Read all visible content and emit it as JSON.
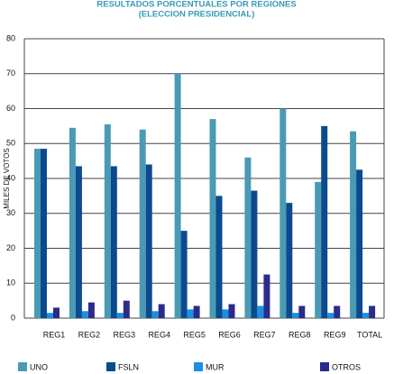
{
  "chart_data": {
    "type": "bar",
    "title": "RESULTADOS PORCENTUALES POR REGIONES",
    "subtitle": "(ELECCION PRESIDENCIAL)",
    "y_label": "MILES DE VOTOS",
    "categories": [
      "REG1",
      "REG2",
      "REG3",
      "REG4",
      "REG5",
      "REG6",
      "REG7",
      "REG8",
      "REG9",
      "TOTAL"
    ],
    "series": [
      {
        "name": "UNO",
        "color": "#4a9ab4",
        "values": [
          48.5,
          54.5,
          55.5,
          54,
          70,
          57,
          46,
          60,
          39,
          53.5
        ]
      },
      {
        "name": "FSLN",
        "color": "#0b4a8e",
        "values": [
          48.5,
          43.5,
          43.5,
          44,
          25,
          35,
          36.5,
          33,
          55,
          42.5
        ]
      },
      {
        "name": "MUR",
        "color": "#1b8fe0",
        "values": [
          1.5,
          2,
          1.5,
          2,
          2.5,
          2.5,
          3.5,
          1.5,
          1.5,
          1.5
        ]
      },
      {
        "name": "OTROS",
        "color": "#2b2b8c",
        "values": [
          3,
          4.5,
          5,
          4,
          3.5,
          4,
          12.5,
          3.5,
          3.5,
          3.5
        ]
      }
    ],
    "ylim": [
      0,
      80
    ],
    "yticks": [
      0,
      10,
      20,
      30,
      40,
      50,
      60,
      70,
      80
    ],
    "grid": true
  }
}
